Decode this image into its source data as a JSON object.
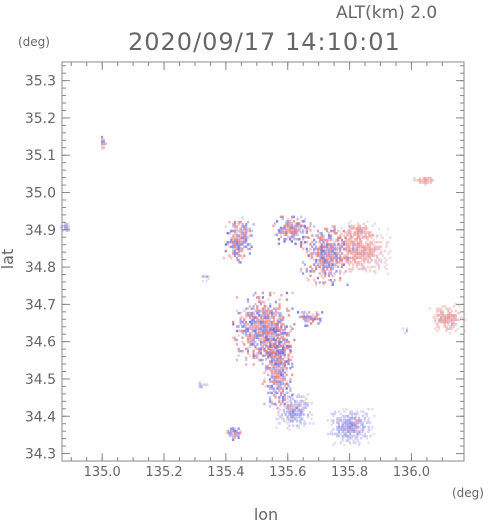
{
  "header": {
    "altitude_label": "ALT(km) 2.0",
    "datetime": "2020/09/17 14:10:01"
  },
  "chart_data": {
    "type": "heatmap",
    "title": "2020/09/17 14:10:01",
    "xlabel": "lon",
    "ylabel": "lat",
    "x_unit": "(deg)",
    "y_unit": "(deg)",
    "xlim": [
      134.87,
      136.17
    ],
    "ylim": [
      34.28,
      35.35
    ],
    "x_ticks": [
      135.0,
      135.2,
      135.4,
      135.6,
      135.8,
      136.0
    ],
    "x_tick_labels": [
      "135.0",
      "135.2",
      "135.4",
      "135.6",
      "135.8",
      "136.0"
    ],
    "y_ticks": [
      34.3,
      34.4,
      34.5,
      34.6,
      34.7,
      34.8,
      34.9,
      35.0,
      35.1,
      35.2,
      35.3
    ],
    "y_tick_labels": [
      "34.3",
      "34.4",
      "34.5",
      "34.6",
      "34.7",
      "34.8",
      "34.9",
      "35.0",
      "35.1",
      "35.2",
      "35.3"
    ],
    "grid": false,
    "colors": {
      "positive": "#e87878",
      "negative": "#6f6fe0",
      "frame": "#888888"
    },
    "regions": [
      {
        "lon": 135.52,
        "lat": 34.63,
        "sx": 0.05,
        "sy": 0.05,
        "pattern": "mixed"
      },
      {
        "lon": 135.565,
        "lat": 34.52,
        "sx": 0.025,
        "sy": 0.06,
        "pattern": "mixed"
      },
      {
        "lon": 135.62,
        "lat": 34.41,
        "sx": 0.03,
        "sy": 0.025,
        "pattern": "negative"
      },
      {
        "lon": 135.8,
        "lat": 34.37,
        "sx": 0.04,
        "sy": 0.025,
        "pattern": "negative"
      },
      {
        "lon": 135.83,
        "lat": 34.84,
        "sx": 0.05,
        "sy": 0.03,
        "pattern": "positive"
      },
      {
        "lon": 135.83,
        "lat": 34.89,
        "sx": 0.03,
        "sy": 0.015,
        "pattern": "positive"
      },
      {
        "lon": 135.72,
        "lat": 34.83,
        "sx": 0.04,
        "sy": 0.04,
        "pattern": "mixed"
      },
      {
        "lon": 136.11,
        "lat": 34.66,
        "sx": 0.03,
        "sy": 0.02,
        "pattern": "positive"
      },
      {
        "lon": 136.04,
        "lat": 35.03,
        "sx": 0.02,
        "sy": 0.006,
        "pattern": "positive"
      },
      {
        "lon": 135.61,
        "lat": 34.9,
        "sx": 0.03,
        "sy": 0.02,
        "pattern": "mixed"
      },
      {
        "lon": 135.44,
        "lat": 34.87,
        "sx": 0.025,
        "sy": 0.03,
        "pattern": "mixed"
      },
      {
        "lon": 135.32,
        "lat": 34.48,
        "sx": 0.01,
        "sy": 0.005,
        "pattern": "negative"
      },
      {
        "lon": 134.88,
        "lat": 34.905,
        "sx": 0.008,
        "sy": 0.008,
        "pattern": "negative"
      },
      {
        "lon": 135.0,
        "lat": 35.13,
        "sx": 0.005,
        "sy": 0.01,
        "pattern": "mixed"
      },
      {
        "lon": 135.67,
        "lat": 34.66,
        "sx": 0.02,
        "sy": 0.01,
        "pattern": "mixed"
      },
      {
        "lon": 135.42,
        "lat": 34.35,
        "sx": 0.015,
        "sy": 0.008,
        "pattern": "mixed"
      },
      {
        "lon": 135.98,
        "lat": 34.63,
        "sx": 0.005,
        "sy": 0.005,
        "pattern": "negative"
      },
      {
        "lon": 135.33,
        "lat": 34.77,
        "sx": 0.01,
        "sy": 0.005,
        "pattern": "negative"
      }
    ]
  }
}
